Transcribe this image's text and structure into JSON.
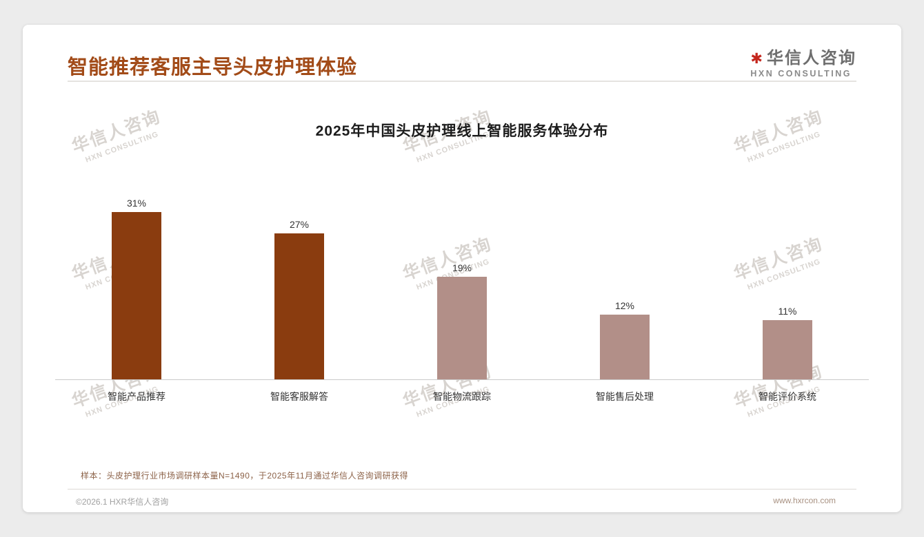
{
  "header": {
    "title": "智能推荐客服主导头皮护理体验",
    "logo": {
      "mark": "✱",
      "name": "华信人咨询",
      "subtitle": "HXN CONSULTING"
    }
  },
  "watermark": {
    "line1": "华信人咨询",
    "line2": "HXN CONSULTING"
  },
  "chart_data": {
    "type": "bar",
    "title": "2025年中国头皮护理线上智能服务体验分布",
    "categories": [
      "智能产品推荐",
      "智能客服解答",
      "智能物流跟踪",
      "智能售后处理",
      "智能评价系统"
    ],
    "values": [
      31,
      27,
      19,
      12,
      11
    ],
    "value_labels": [
      "31%",
      "27%",
      "19%",
      "12%",
      "11%"
    ],
    "bar_colors": [
      "#8a3c0f",
      "#8a3c0f",
      "#b28f88",
      "#b28f88",
      "#b28f88"
    ],
    "xlabel": "",
    "ylabel": "",
    "ylim": [
      0,
      35
    ],
    "grid": false,
    "legend": false
  },
  "footnote": {
    "text": "样本：头皮护理行业市场调研样本量N=1490，于2025年11月通过华信人咨询调研获得"
  },
  "footer": {
    "left": "©2026.1 HXR华信人咨询",
    "right": "www.hxrcon.com"
  },
  "colors": {
    "accent_title": "#a24b18",
    "bar_primary": "#8a3c0f",
    "bar_secondary": "#b28f88",
    "logo_red": "#c4261d",
    "watermark": "#d8d4d0",
    "page_background": "#ececec",
    "card_background": "#ffffff"
  }
}
